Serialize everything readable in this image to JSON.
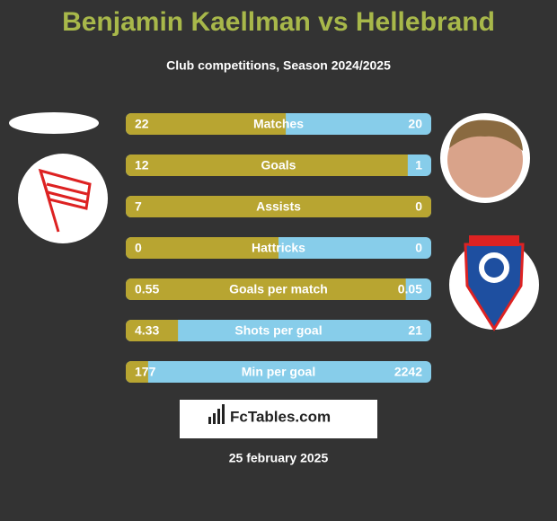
{
  "header": {
    "title": "Benjamin Kaellman vs Hellebrand",
    "subtitle": "Club competitions, Season 2024/2025"
  },
  "rows": [
    {
      "label": "Matches",
      "left": 22,
      "right": 20
    },
    {
      "label": "Goals",
      "left": 12,
      "right": 1
    },
    {
      "label": "Assists",
      "left": 7,
      "right": 0
    },
    {
      "label": "Hattricks",
      "left": 0,
      "right": 0
    },
    {
      "label": "Goals per match",
      "left": 0.55,
      "right": 0.05
    },
    {
      "label": "Shots per goal",
      "left": 4.33,
      "right": 21
    },
    {
      "label": "Min per goal",
      "left": 177,
      "right": 2242
    }
  ],
  "brand": "FcTables.com",
  "date": "25 february 2025"
}
